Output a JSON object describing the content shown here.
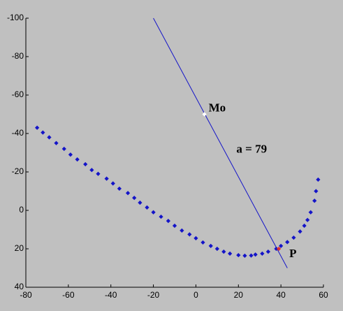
{
  "chart_data": {
    "type": "scatter",
    "xlim": [
      -80,
      60
    ],
    "xticks": [
      -80,
      -60,
      -40,
      -20,
      0,
      20,
      40,
      60
    ],
    "ylim": [
      40,
      -100
    ],
    "yticks": [
      40,
      20,
      0,
      -20,
      -40,
      -60,
      -80,
      -100
    ],
    "series": [
      {
        "type": "scatter",
        "color": "#1414c8",
        "x": [
          -74.7,
          -72,
          -69,
          -65.7,
          -62,
          -59,
          -55.8,
          -52,
          -49,
          -46,
          -42,
          -39,
          -36,
          -32,
          -29,
          -26.3,
          -23,
          -20,
          -16.4,
          -13,
          -10,
          -6.6,
          -3,
          0,
          3.3,
          7,
          10,
          13.1,
          16,
          20,
          23,
          26,
          28,
          31.2,
          34,
          37.8,
          40,
          43,
          46,
          49,
          51,
          52.5,
          54,
          55.8,
          56.5,
          57.5
        ],
        "y": [
          -43,
          -40.5,
          -38,
          -35,
          -32,
          -29,
          -26.5,
          -24,
          -21,
          -19,
          -16.5,
          -14,
          -11.3,
          -9,
          -6.5,
          -4,
          -1.5,
          1,
          3.3,
          5.5,
          8,
          10.5,
          12.5,
          14.5,
          16.7,
          18.5,
          20,
          21.5,
          22.5,
          23.3,
          23.6,
          23.5,
          23,
          22.5,
          21.5,
          20,
          18.5,
          16.5,
          14.2,
          11,
          8,
          5,
          1,
          -5,
          -10,
          -16
        ]
      },
      {
        "type": "line",
        "color": "#1414c8",
        "x": [
          -20,
          43
        ],
        "y": [
          -100,
          30
        ]
      },
      {
        "type": "scatter",
        "color": "#ffffff",
        "x": [
          4
        ],
        "y": [
          -50
        ]
      },
      {
        "type": "scatter",
        "color": "#e03030",
        "x": [
          39
        ],
        "y": [
          20
        ]
      }
    ],
    "annotations": [
      "Mo",
      "a = 79",
      "P"
    ]
  }
}
